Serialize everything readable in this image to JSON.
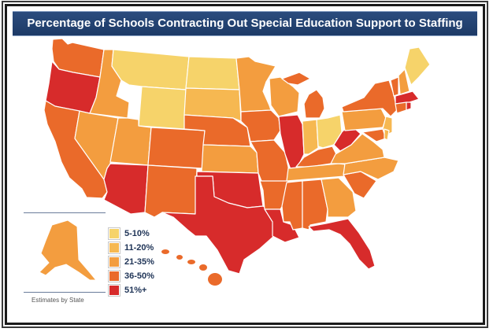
{
  "title": "Percentage of Schools Contracting Out Special Education Support to Staffing Companies",
  "footnote": "Estimates by State",
  "colors": {
    "c1": "#f6d36a",
    "c2": "#f6b851",
    "c3": "#f39d3f",
    "c4": "#ea6a2a",
    "c5": "#d72b2b",
    "border": "#ffffff",
    "banner": "#1d3a66"
  },
  "legend": [
    {
      "label": "5-10%",
      "color": "#f6d36a"
    },
    {
      "label": "11-20%",
      "color": "#f6b851"
    },
    {
      "label": "21-35%",
      "color": "#f39d3f"
    },
    {
      "label": "36-50%",
      "color": "#ea6a2a"
    },
    {
      "label": "51%+",
      "color": "#d72b2b"
    }
  ]
}
